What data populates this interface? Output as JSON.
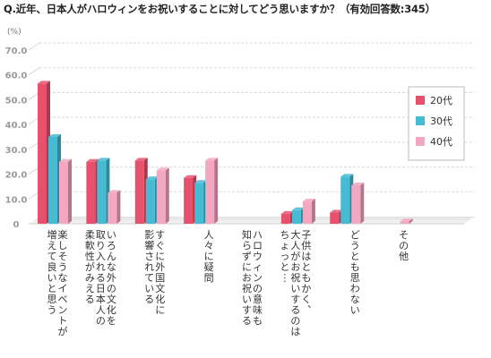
{
  "chart_data": {
    "type": "bar",
    "title": "Q.近年、日本人がハロウィンをお祝いすることに対してどう思いますか？（有効回答数:345）",
    "unit_label": "(%)",
    "ylim": [
      0,
      70
    ],
    "yticks": [
      "70.0",
      "60.0",
      "50.0",
      "40.0",
      "30.0",
      "20.0",
      "10.0",
      "0"
    ],
    "grid": true,
    "legend_position": "right",
    "categories": [
      "楽しそうなイベントが増えて良いと思う",
      "いろんな外の文化を取り入れる日本人の柔軟性がみえる",
      "すぐに外国文化に影響されている",
      "人々に疑問",
      "ハロウィンの意味も知らずにお祝いする",
      "子供はともかく、大人がお祝いするのはちょっと…",
      "どうとも思わない",
      "その他"
    ],
    "category_label_lines": [
      [
        "楽しそうなイベントが",
        "増えて良いと思う"
      ],
      [
        "いろんな外の文化を",
        "取り入れる日本人の",
        "柔軟性がみえる"
      ],
      [
        "すぐに外国文化に",
        "影響されている"
      ],
      [
        "人々に疑問"
      ],
      [
        "ハロウィンの意味も",
        "知らずにお祝いする"
      ],
      [
        "子供はともかく、",
        "大人がお祝いするのは",
        "ちょっと…"
      ],
      [
        "どうとも思わない"
      ],
      [
        "その他"
      ]
    ],
    "series": [
      {
        "name": "20代",
        "color": "#e8506e",
        "values": [
          56.5,
          25.0,
          25.5,
          18.5,
          0,
          4.0,
          4.5,
          0
        ]
      },
      {
        "name": "30代",
        "color": "#45bcd3",
        "values": [
          35.0,
          25.5,
          18.0,
          16.5,
          0,
          5.5,
          19.0,
          0
        ]
      },
      {
        "name": "40代",
        "color": "#f4a7c0",
        "values": [
          25.0,
          12.5,
          21.5,
          25.5,
          0,
          9.0,
          15.5,
          1.0
        ]
      }
    ]
  }
}
